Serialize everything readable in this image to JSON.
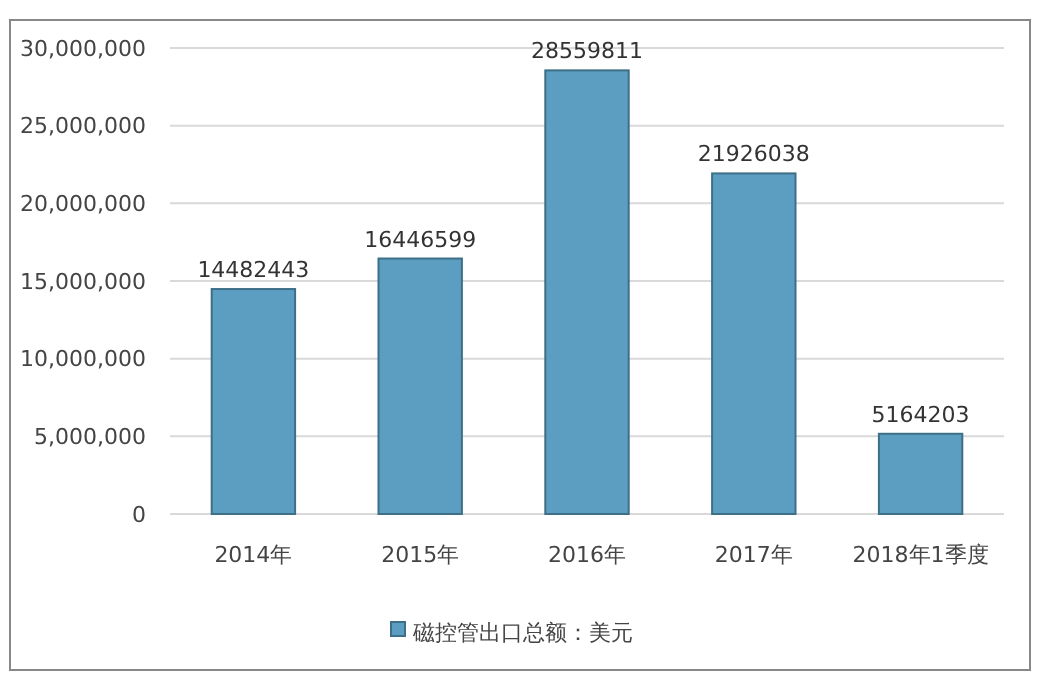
{
  "chart_data": {
    "type": "bar",
    "categories": [
      "2014年",
      "2015年",
      "2016年",
      "2017年",
      "2018年1季度"
    ],
    "series": [
      {
        "name": "磁控管出口总额：美元",
        "color": "#5b9ec1",
        "values": [
          14482443,
          16446599,
          28559811,
          21926038,
          5164203
        ]
      }
    ],
    "ylim": [
      0,
      30000000
    ],
    "yticks": [
      0,
      {
        "value": 5000000,
        "label": "5,000,000"
      },
      {
        "value": 10000000,
        "label": "10,000,000"
      },
      {
        "value": 15000000,
        "label": "15,000,000"
      },
      {
        "value": 20000000,
        "label": "20,000,000"
      },
      {
        "value": 25000000,
        "label": "25,000,000"
      },
      {
        "value": 30000000,
        "label": "30,000,000"
      }
    ],
    "grid": "y",
    "legend": "bottom",
    "data_labels": true
  }
}
